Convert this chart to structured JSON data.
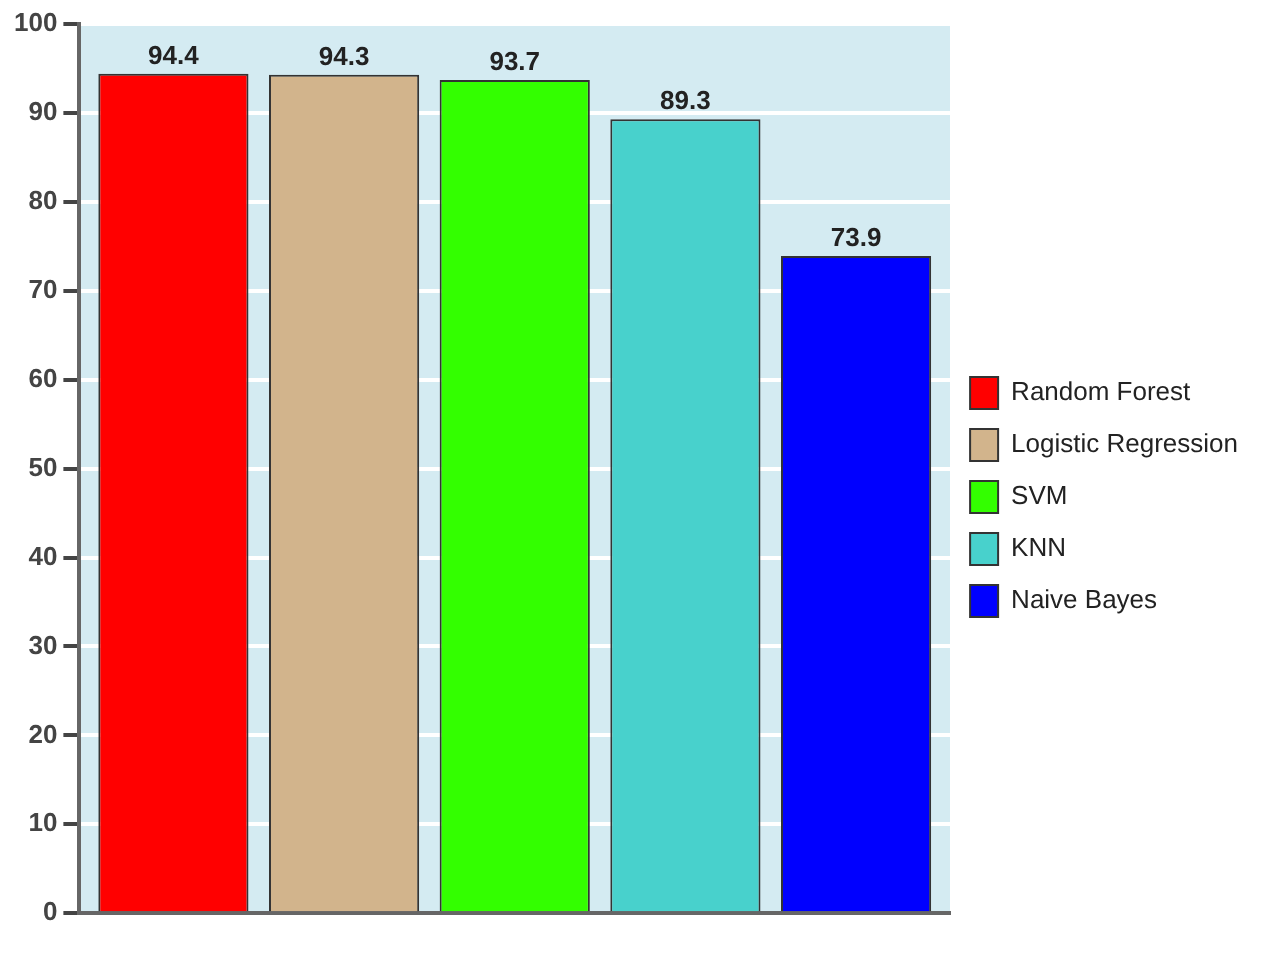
{
  "chart_data": {
    "type": "bar",
    "categories": [
      null
    ],
    "series": [
      {
        "name": "Random Forest",
        "color": "#ff0000",
        "values": [
          94.4
        ]
      },
      {
        "name": "Logistic Regression",
        "color": "#d2b48c",
        "values": [
          94.3
        ]
      },
      {
        "name": "SVM",
        "color": "#33ff00",
        "values": [
          93.7
        ]
      },
      {
        "name": "KNN",
        "color": "#48d1cc",
        "values": [
          89.3
        ]
      },
      {
        "name": "Naive Bayes",
        "color": "#0000ff",
        "values": [
          73.9
        ]
      }
    ],
    "ylim": [
      0,
      100
    ],
    "yticks": [
      0,
      10,
      20,
      30,
      40,
      50,
      60,
      70,
      80,
      90,
      100
    ],
    "grid": "y",
    "legend": "right",
    "data_labels": true
  }
}
